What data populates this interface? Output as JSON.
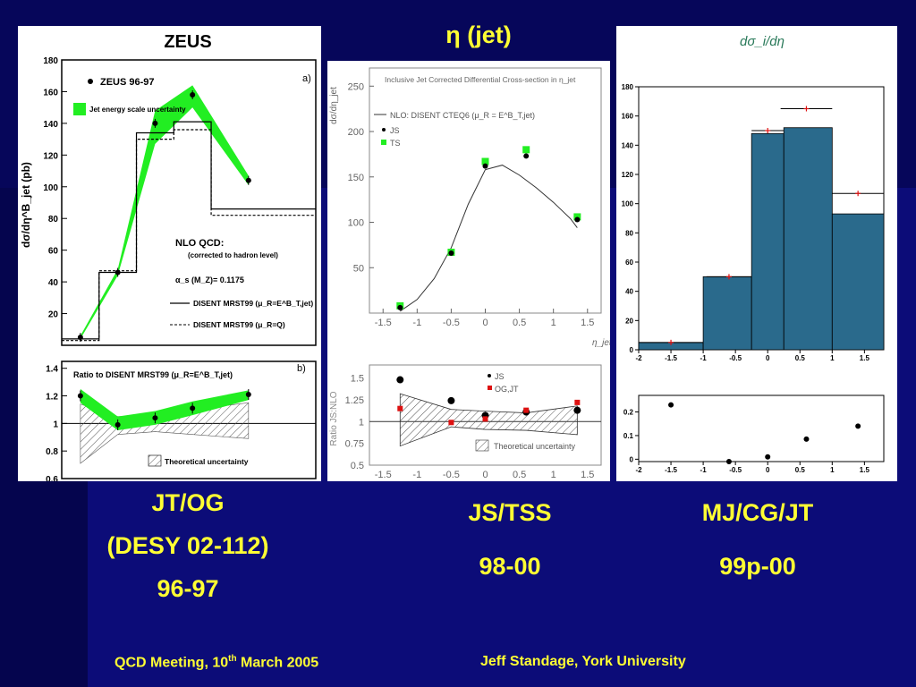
{
  "slide": {
    "title": "η (jet)",
    "captions": [
      {
        "line1": "JT/OG",
        "line2": "(DESY 02-112)",
        "line3": "96-97"
      },
      {
        "line1": "JS/TSS",
        "line2": "98-00"
      },
      {
        "line1": "MJ/CG/JT",
        "line2": "99p-00"
      }
    ],
    "footer_left": "QCD Meeting, 10",
    "footer_left_sup": "th",
    "footer_left_tail": " March 2005",
    "footer_right": "Jeff Standage, York University"
  },
  "colors": {
    "accent_text": "#ffff33",
    "band_green": "#22ee22",
    "hist_fill": "#2a6a8c",
    "nlo_red": "#dd1111"
  },
  "chart_data": [
    {
      "type": "line",
      "title": "ZEUS",
      "panel_label": "a)",
      "ylabel": "dσ/dη^B_jet (pb)",
      "ylim": [
        0,
        180
      ],
      "xlim": [
        -1,
        2.4
      ],
      "yticks": [
        20,
        40,
        60,
        80,
        100,
        120,
        140,
        160,
        180
      ],
      "legend": [
        "ZEUS 96-97",
        "Jet energy scale uncertainty"
      ],
      "annotations": {
        "nlo": "NLO QCD:",
        "corrected": "(corrected to hadron level)",
        "alpha": "α_s (M_Z)= 0.1175",
        "solid": "DISENT MRST99 (μ_R=E^B_T,jet)",
        "dashed": "DISENT MRST99 (μ_R=Q)"
      },
      "series": [
        {
          "name": "ZEUS 96-97",
          "x": [
            -0.75,
            -0.25,
            0.25,
            0.75,
            1.5
          ],
          "y": [
            5,
            46,
            140,
            158,
            104
          ]
        }
      ],
      "band": {
        "x": [
          -0.75,
          -0.25,
          0.25,
          0.75,
          1.5
        ],
        "lo": [
          4,
          44,
          127,
          150,
          101
        ],
        "hi": [
          6,
          48,
          148,
          164,
          107
        ]
      },
      "nlo_solid": {
        "edges": [
          -1,
          -0.5,
          0,
          0.5,
          1,
          2.4
        ],
        "values": [
          4,
          46,
          134,
          141,
          86
        ]
      },
      "nlo_dashed": {
        "edges": [
          -1,
          -0.5,
          0,
          0.5,
          1,
          2.4
        ],
        "values": [
          3,
          47,
          130,
          136,
          82
        ]
      }
    },
    {
      "type": "line",
      "panel_label": "b)",
      "legend_title": "Ratio to DISENT MRST99 (μ_R=E^B_T,jet)",
      "legend_item": "Theoretical uncertainty",
      "ylim": [
        0.6,
        1.45
      ],
      "yticks": [
        0.6,
        0.8,
        1,
        1.2,
        1.4
      ],
      "series": [
        {
          "name": "ratio",
          "x": [
            -0.75,
            -0.25,
            0.25,
            0.75,
            1.5
          ],
          "y": [
            1.2,
            0.99,
            1.04,
            1.11,
            1.21
          ]
        }
      ]
    },
    {
      "type": "scatter",
      "title": "Inclusive Jet Corrected Differential Cross-section in η_jet",
      "ylabel": "dσ/dη_jet",
      "xlabel": "η_jet",
      "xlim": [
        -1.7,
        1.7
      ],
      "ylim": [
        0,
        270
      ],
      "xticks": [
        -1.5,
        -1,
        -0.5,
        0,
        0.5,
        1,
        1.5
      ],
      "yticks": [
        50,
        100,
        150,
        200,
        250
      ],
      "legend": [
        "NLO: DISENT CTEQ6 (μ_R = E^B_T,jet)",
        "JS",
        "TS"
      ],
      "series": [
        {
          "name": "JS",
          "x": [
            -1.25,
            -0.5,
            0,
            0.6,
            1.35
          ],
          "y": [
            6,
            66,
            162,
            173,
            103
          ]
        },
        {
          "name": "TS",
          "x": [
            -1.25,
            -0.5,
            0,
            0.6,
            1.35
          ],
          "y": [
            8,
            67,
            167,
            180,
            106
          ]
        },
        {
          "name": "NLO",
          "x": [
            -1.25,
            -1,
            -0.75,
            -0.5,
            -0.25,
            0,
            0.25,
            0.5,
            0.75,
            1,
            1.25,
            1.35
          ],
          "y": [
            2,
            15,
            38,
            72,
            120,
            158,
            163,
            152,
            138,
            122,
            104,
            94
          ]
        }
      ]
    },
    {
      "type": "scatter",
      "ylabel": "Ratio JS:NLO",
      "xlim": [
        -1.7,
        1.7
      ],
      "ylim": [
        0.5,
        1.65
      ],
      "yticks": [
        0.5,
        0.75,
        1,
        1.25,
        1.5
      ],
      "xticks": [
        -1.5,
        -1,
        -0.5,
        0,
        0.5,
        1,
        1.5
      ],
      "legend": [
        "JS",
        "OG,JT",
        "Theoretical uncertainty"
      ],
      "series": [
        {
          "name": "JS",
          "x": [
            -1.25,
            -0.5,
            0,
            0.6,
            1.35
          ],
          "y": [
            1.48,
            1.24,
            1.07,
            1.11,
            1.13
          ]
        },
        {
          "name": "OG,JT",
          "x": [
            -1.25,
            -0.5,
            0,
            0.6,
            1.35
          ],
          "y": [
            1.15,
            0.99,
            1.03,
            1.13,
            1.22
          ]
        }
      ]
    },
    {
      "type": "bar",
      "title": "dσ_i/dη",
      "xlim": [
        -2,
        1.8
      ],
      "ylim": [
        0,
        180
      ],
      "xticks": [
        -2,
        -1.5,
        -1,
        -0.5,
        0,
        0.5,
        1,
        1.5
      ],
      "yticks": [
        0,
        20,
        40,
        60,
        80,
        100,
        120,
        140,
        160,
        180
      ],
      "bins": {
        "edges": [
          -2,
          -1,
          -0.25,
          0.25,
          1,
          1.8
        ],
        "values": [
          5,
          50,
          148,
          152,
          93
        ]
      },
      "series": [
        {
          "name": "NLO",
          "x": [
            -1.5,
            -0.6,
            0,
            0.6,
            1.4
          ],
          "y": [
            5,
            50,
            150,
            165,
            107
          ]
        }
      ]
    },
    {
      "type": "scatter",
      "xlim": [
        -2,
        1.8
      ],
      "ylim": [
        -0.01,
        0.27
      ],
      "yticks": [
        0,
        0.1,
        0.2
      ],
      "xticks": [
        -2,
        -1.5,
        -1,
        -0.5,
        0,
        0.5,
        1,
        1.5
      ],
      "series": [
        {
          "name": "points",
          "x": [
            -1.5,
            -0.6,
            0,
            0.6,
            1.4
          ],
          "y": [
            0.23,
            -0.01,
            0.01,
            0.085,
            0.14
          ]
        }
      ]
    }
  ]
}
